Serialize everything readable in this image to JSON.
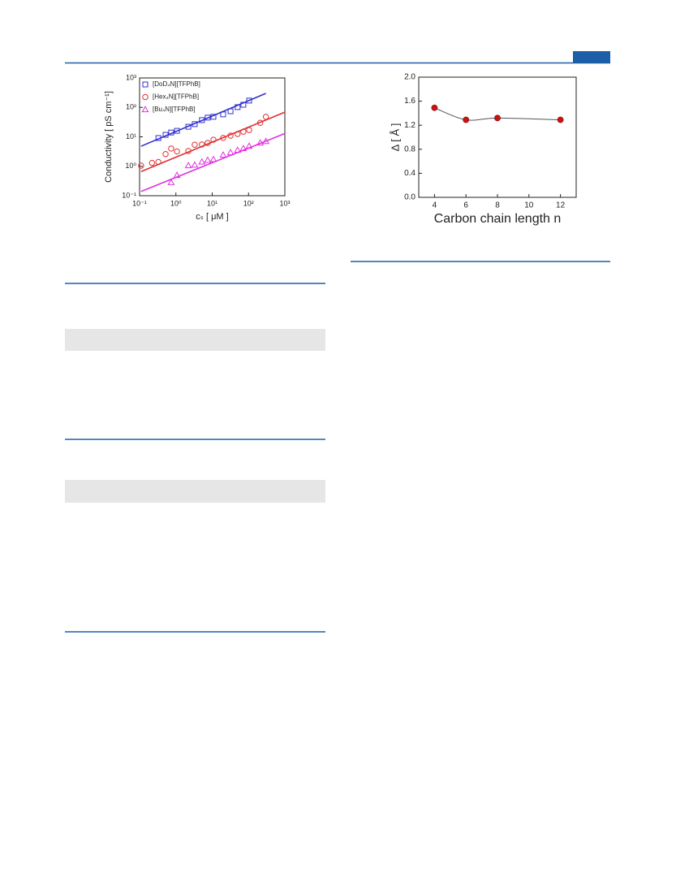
{
  "chart_data": [
    {
      "type": "scatter",
      "xlabel": "cₛ [ μM ]",
      "ylabel": "Conductivity [ pS cm⁻¹]",
      "xscale": "log",
      "yscale": "log",
      "xlim": [
        0.1,
        1000
      ],
      "ylim": [
        0.1,
        1000
      ],
      "xticks": [
        {
          "value": 0.1,
          "label": "10⁻¹"
        },
        {
          "value": 1,
          "label": "10⁰"
        },
        {
          "value": 10,
          "label": "10¹"
        },
        {
          "value": 100,
          "label": "10²"
        },
        {
          "value": 1000,
          "label": "10³"
        }
      ],
      "yticks": [
        {
          "value": 0.1,
          "label": "10⁻¹"
        },
        {
          "value": 1,
          "label": "10⁰"
        },
        {
          "value": 10,
          "label": "10¹"
        },
        {
          "value": 100,
          "label": "10²"
        },
        {
          "value": 1000,
          "label": "10³"
        }
      ],
      "legend": "upper left",
      "series": [
        {
          "name": "[DoD₄N][TFPhB]",
          "color": "#3030d0",
          "marker": "square",
          "x": [
            0.33,
            0.52,
            0.74,
            1.07,
            2.2,
            3.3,
            5.2,
            7.5,
            10.8,
            20,
            32,
            50,
            72,
            104
          ],
          "values": [
            9.1,
            11.7,
            14,
            16,
            22,
            27,
            37,
            45,
            48,
            58,
            74,
            102,
            123,
            170
          ],
          "fit_x": [
            0.11,
            300
          ],
          "fit_values": [
            4.8,
            300
          ]
        },
        {
          "name": "[Hex₄N][TFPhB]",
          "color": "#e03030",
          "marker": "circle",
          "x": [
            0.11,
            0.22,
            0.33,
            0.52,
            0.74,
            1.07,
            2.2,
            3.3,
            5.2,
            7.5,
            10.8,
            20,
            32,
            50,
            72,
            104,
            210,
            300
          ],
          "values": [
            1.05,
            1.3,
            1.4,
            2.6,
            4,
            3.2,
            3.3,
            5.4,
            5.5,
            6.2,
            8,
            9.2,
            11,
            12.5,
            15,
            17,
            30,
            48
          ],
          "fit_x": [
            0.11,
            1000
          ],
          "fit_values": [
            0.66,
            69
          ]
        },
        {
          "name": "[Bu₄N][TFPhB]",
          "color": "#e030e0",
          "marker": "triangle",
          "x": [
            0.74,
            1.07,
            2.2,
            3.3,
            5.2,
            7.5,
            10.8,
            20,
            32,
            50,
            72,
            104,
            210,
            300
          ],
          "values": [
            0.28,
            0.49,
            1.05,
            1.1,
            1.4,
            1.6,
            1.7,
            2.4,
            2.9,
            3.5,
            4,
            4.8,
            6.2,
            7
          ],
          "fit_x": [
            0.11,
            1000
          ],
          "fit_values": [
            0.14,
            13
          ]
        }
      ]
    },
    {
      "type": "line",
      "xlabel": "Carbon chain length n",
      "ylabel": "Δ [ Å ]",
      "xlim": [
        3,
        13
      ],
      "ylim": [
        0,
        2
      ],
      "xticks": [
        4,
        6,
        8,
        10,
        12
      ],
      "yticks": [
        {
          "value": 0,
          "label": "0.0"
        },
        0.4,
        0.8,
        1.2,
        1.6,
        {
          "value": 2,
          "label": "2.0"
        }
      ],
      "x": [
        4,
        6,
        8,
        12
      ],
      "values": [
        1.49,
        1.29,
        1.32,
        1.29
      ],
      "color": "#cc1111",
      "line_color": "#555555"
    }
  ]
}
